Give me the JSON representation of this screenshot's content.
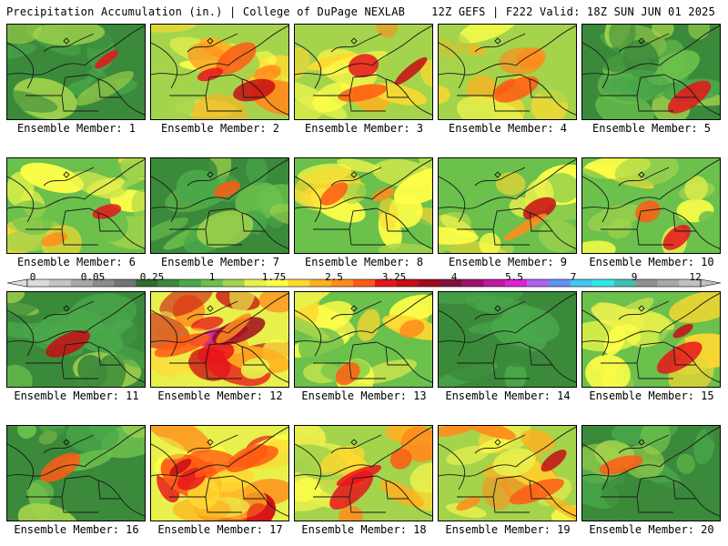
{
  "header": {
    "title": "Precipitation Accumulation (in.) | College of DuPage NEXLAB",
    "valid": "12Z GEFS | F222 Valid: 18Z SUN JUN 01 2025"
  },
  "legend": {
    "labels": [
      "0",
      "0.05",
      "0.25",
      "1",
      "1.75",
      "2.5",
      "3.25",
      "4",
      "5.5",
      "7",
      "9",
      "12"
    ],
    "colors": [
      "#dcdcdc",
      "#c4c4c4",
      "#a8a8a8",
      "#8c8c8c",
      "#747474",
      "#2e6b2e",
      "#3b8a3b",
      "#4aa84a",
      "#6cc04c",
      "#a4d44c",
      "#e8f04c",
      "#ffff48",
      "#ffd830",
      "#ffb020",
      "#ff8c1c",
      "#ff5a14",
      "#e8141c",
      "#c80c14",
      "#a00a1c",
      "#801040",
      "#a01070",
      "#c018a0",
      "#e020d8",
      "#b060f0",
      "#6090f0",
      "#40c8f0",
      "#30e8e8",
      "#40c0b0",
      "#909090",
      "#a8a8a8",
      "#c0c0c0"
    ]
  },
  "members": [
    {
      "caption": "Ensemble Member: 1",
      "precip_level": "low"
    },
    {
      "caption": "Ensemble Member: 2",
      "precip_level": "high"
    },
    {
      "caption": "Ensemble Member: 3",
      "precip_level": "high"
    },
    {
      "caption": "Ensemble Member: 4",
      "precip_level": "high"
    },
    {
      "caption": "Ensemble Member: 5",
      "precip_level": "low"
    },
    {
      "caption": "Ensemble Member: 6",
      "precip_level": "medium"
    },
    {
      "caption": "Ensemble Member: 7",
      "precip_level": "low"
    },
    {
      "caption": "Ensemble Member: 8",
      "precip_level": "medium"
    },
    {
      "caption": "Ensemble Member: 9",
      "precip_level": "medium"
    },
    {
      "caption": "Ensemble Member: 10",
      "precip_level": "medium"
    },
    {
      "caption": "Ensemble Member: 11",
      "precip_level": "low"
    },
    {
      "caption": "Ensemble Member: 12",
      "precip_level": "very-high"
    },
    {
      "caption": "Ensemble Member: 13",
      "precip_level": "medium"
    },
    {
      "caption": "Ensemble Member: 14",
      "precip_level": "very-low"
    },
    {
      "caption": "Ensemble Member: 15",
      "precip_level": "medium"
    },
    {
      "caption": "Ensemble Member: 16",
      "precip_level": "low"
    },
    {
      "caption": "Ensemble Member: 17",
      "precip_level": "very-high"
    },
    {
      "caption": "Ensemble Member: 18",
      "precip_level": "high"
    },
    {
      "caption": "Ensemble Member: 19",
      "precip_level": "high"
    },
    {
      "caption": "Ensemble Member: 20",
      "precip_level": "low"
    }
  ]
}
